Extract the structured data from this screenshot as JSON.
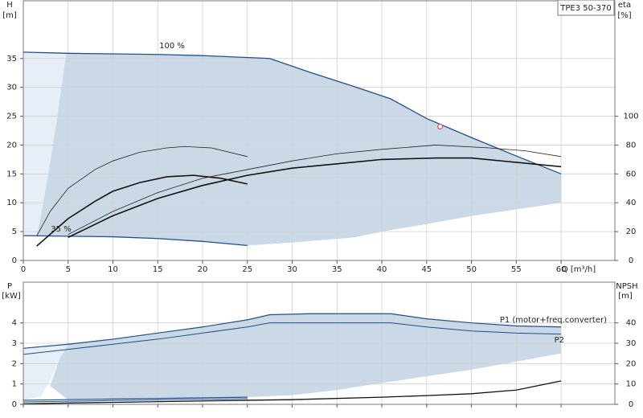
{
  "chart_data": [
    {
      "type": "line",
      "title": "TPE3 50-370",
      "y_label": "H",
      "y_unit": "[m]",
      "y2_label": "eta",
      "y2_unit": "[%]",
      "x_label": "Q [m³/h]",
      "xlim": [
        0,
        66
      ],
      "ylim": [
        0,
        45
      ],
      "y2lim": [
        0,
        180
      ],
      "xticks": [
        0,
        5,
        10,
        15,
        20,
        25,
        30,
        35,
        40,
        45,
        50,
        55,
        60
      ],
      "yticks": [
        0,
        5,
        10,
        15,
        20,
        25,
        30,
        35
      ],
      "y2ticks": [
        0,
        20,
        40,
        60,
        80,
        100
      ],
      "show_xtick_labels": true,
      "grid": true,
      "areas": [
        {
          "color": "#e6eff8",
          "x": [
            0,
            4.8,
            3.8,
            2.8,
            2,
            1.5,
            0
          ],
          "values": [
            36.1,
            35.9,
            25,
            15,
            8,
            4.3,
            4.3
          ]
        },
        {
          "color": "#cbd9e6",
          "x": [
            4.8,
            10,
            15,
            20,
            27.5,
            32,
            37,
            41,
            45,
            50,
            55,
            60,
            60,
            50,
            45,
            40,
            37,
            30,
            25,
            20,
            15,
            10,
            5,
            1.5,
            2,
            2.8,
            3.8
          ],
          "values": [
            35.9,
            35.8,
            35.7,
            35.5,
            35.0,
            32.6,
            30.1,
            28.0,
            24.6,
            21.3,
            18.1,
            15.0,
            10,
            7.7,
            6.3,
            5,
            4,
            3.1,
            2.6,
            3.3,
            3.8,
            4.1,
            4.2,
            4.3,
            8,
            15,
            25
          ]
        }
      ],
      "series": [
        {
          "name": "100 %",
          "color": "#1f4f8c",
          "width": 1.3,
          "axis": "y",
          "x": [
            0,
            5,
            10,
            15,
            20,
            27.5,
            32,
            37,
            41,
            45,
            50,
            55,
            60
          ],
          "values": [
            36.1,
            35.9,
            35.8,
            35.7,
            35.5,
            35.0,
            32.6,
            30.1,
            28.0,
            24.6,
            21.3,
            18.1,
            15.0
          ]
        },
        {
          "name": "35 %",
          "color": "#1f4f8c",
          "width": 1.3,
          "axis": "y",
          "x": [
            0,
            5,
            10,
            15,
            20,
            25
          ],
          "values": [
            4.3,
            4.2,
            4.1,
            3.8,
            3.3,
            2.6
          ]
        },
        {
          "color": "#222222",
          "width": 0.8,
          "axis": "y2",
          "x": [
            1.5,
            3,
            5,
            8,
            10,
            13,
            16,
            18,
            21,
            25
          ],
          "values": [
            17,
            34,
            50,
            63,
            69,
            75,
            78,
            79,
            78,
            72
          ]
        },
        {
          "color": "#111111",
          "width": 1.6,
          "axis": "y2",
          "x": [
            1.5,
            5,
            8,
            10,
            13,
            16,
            19,
            22,
            25
          ],
          "values": [
            10,
            29,
            41,
            48,
            54,
            58,
            59,
            57,
            53
          ]
        },
        {
          "color": "#222222",
          "width": 0.8,
          "axis": "y2",
          "x": [
            5,
            10,
            15,
            20,
            25,
            30,
            35,
            40,
            46,
            52,
            56,
            60
          ],
          "values": [
            18,
            34,
            47,
            57,
            63,
            69,
            74,
            77,
            80,
            78,
            76,
            72
          ]
        },
        {
          "color": "#111111",
          "width": 1.6,
          "axis": "y2",
          "x": [
            5,
            10,
            15,
            20,
            25,
            30,
            35,
            40,
            46,
            50,
            55,
            60
          ],
          "values": [
            16,
            31,
            43,
            52,
            59,
            64,
            67,
            70,
            71,
            71,
            68,
            65
          ]
        }
      ],
      "point": {
        "x": 46.5,
        "y": 23.2,
        "color": "#e05050"
      }
    },
    {
      "type": "line",
      "y_label": "P",
      "y_unit": "[kW]",
      "y2_label": "NPSH",
      "y2_unit": "[m]",
      "xlim": [
        0,
        66
      ],
      "ylim": [
        0,
        6
      ],
      "y2lim": [
        0,
        60
      ],
      "xticks": [
        0,
        5,
        10,
        15,
        20,
        25,
        30,
        35,
        40,
        45,
        50,
        55,
        60
      ],
      "yticks": [
        0,
        1,
        2,
        3,
        4
      ],
      "y2ticks": [
        0,
        10,
        20,
        30,
        40
      ],
      "show_xtick_labels": false,
      "grid": true,
      "areas": [
        {
          "color": "#e6eff8",
          "x": [
            0,
            5,
            4,
            3,
            2,
            0
          ],
          "values": [
            2.75,
            2.95,
            2.2,
            1.2,
            0.4,
            0.2
          ]
        },
        {
          "color": "#cbd9e6",
          "x": [
            5,
            10,
            15,
            20,
            25,
            27.5,
            32,
            41,
            45,
            50,
            55,
            60,
            60,
            50,
            40,
            35,
            30,
            25,
            10,
            5,
            3,
            4
          ],
          "values": [
            2.95,
            3.2,
            3.5,
            3.8,
            4.15,
            4.4,
            4.45,
            4.45,
            4.2,
            4.0,
            3.85,
            3.8,
            2.5,
            1.7,
            1.05,
            0.7,
            0.45,
            0.35,
            0.25,
            0.22,
            0.9,
            2.2
          ]
        }
      ],
      "series": [
        {
          "name": "P1 (motor+freq.converter)",
          "color": "#1f4f8c",
          "width": 1.2,
          "axis": "y",
          "x": [
            0,
            5,
            10,
            15,
            20,
            25,
            27.5,
            32,
            41,
            45,
            50,
            55,
            60
          ],
          "values": [
            2.75,
            2.95,
            3.2,
            3.5,
            3.8,
            4.15,
            4.4,
            4.45,
            4.45,
            4.2,
            4.0,
            3.85,
            3.8
          ]
        },
        {
          "name": "P2",
          "color": "#1f4f8c",
          "width": 1.0,
          "axis": "y",
          "x": [
            0,
            5,
            10,
            15,
            20,
            25,
            27.5,
            32,
            41,
            45,
            50,
            55,
            60
          ],
          "values": [
            2.45,
            2.7,
            2.95,
            3.2,
            3.5,
            3.8,
            4.0,
            4.0,
            4.0,
            3.8,
            3.6,
            3.5,
            3.45
          ]
        },
        {
          "color": "#1f4f8c",
          "width": 1.2,
          "axis": "y",
          "x": [
            0,
            25
          ],
          "values": [
            0.2,
            0.35
          ]
        },
        {
          "color": "#1f4f8c",
          "width": 1.0,
          "axis": "y",
          "x": [
            0,
            25
          ],
          "values": [
            0.12,
            0.28
          ]
        },
        {
          "color": "#111111",
          "width": 1.3,
          "axis": "y2",
          "x": [
            0,
            25,
            30,
            40,
            45,
            50,
            55,
            60
          ],
          "values": [
            0.3,
            2,
            2.3,
            3.5,
            4.3,
            5.2,
            7,
            11.5
          ]
        }
      ]
    }
  ]
}
